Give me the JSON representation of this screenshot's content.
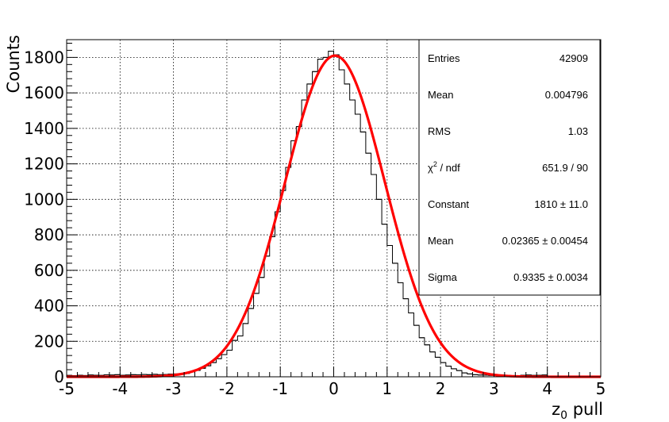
{
  "chart_data": {
    "type": "histogram",
    "xlabel": "z",
    "xlabel_sub": "0",
    "xlabel_rest": " pull",
    "ylabel": "Counts",
    "xlim": [
      -5,
      5
    ],
    "ylim": [
      0,
      1900
    ],
    "grid": true,
    "x_ticks": [
      -5,
      -4,
      -3,
      -2,
      -1,
      0,
      1,
      2,
      3,
      4,
      5
    ],
    "y_ticks": [
      0,
      200,
      400,
      600,
      800,
      1000,
      1200,
      1400,
      1600,
      1800
    ],
    "histogram": {
      "bin_width": 0.1,
      "x_start": -5,
      "counts": [
        8,
        6,
        9,
        7,
        10,
        9,
        8,
        11,
        10,
        12,
        9,
        10,
        12,
        11,
        13,
        12,
        14,
        12,
        13,
        15,
        16,
        17,
        19,
        28,
        36,
        48,
        62,
        80,
        102,
        125,
        150,
        205,
        230,
        300,
        385,
        470,
        560,
        680,
        790,
        930,
        1050,
        1180,
        1330,
        1410,
        1560,
        1650,
        1720,
        1790,
        1800,
        1835,
        1815,
        1730,
        1650,
        1560,
        1480,
        1380,
        1260,
        1140,
        1000,
        860,
        740,
        640,
        530,
        440,
        360,
        290,
        220,
        180,
        140,
        110,
        80,
        60,
        45,
        35,
        22,
        16,
        12,
        10,
        9,
        8,
        8,
        7,
        6,
        5,
        6,
        9,
        10,
        8,
        9,
        10
      ]
    },
    "fit": {
      "name": "gaus",
      "color": "#ff0000",
      "constant": 1810,
      "mean": 0.02365,
      "sigma": 0.9335
    },
    "stats": [
      {
        "label": "Entries",
        "value": "42909"
      },
      {
        "label": "Mean",
        "value": "0.004796"
      },
      {
        "label": "RMS",
        "value": "1.03"
      },
      {
        "label": "χ",
        "label_sup": "2",
        "label_rest": " / ndf",
        "value": "651.9 / 90"
      },
      {
        "label": "Constant",
        "value": "1810 ± 11.0"
      },
      {
        "label": "Mean",
        "value": "0.02365 ± 0.00454"
      },
      {
        "label": "Sigma",
        "value": "0.9335 ± 0.0034"
      }
    ]
  }
}
